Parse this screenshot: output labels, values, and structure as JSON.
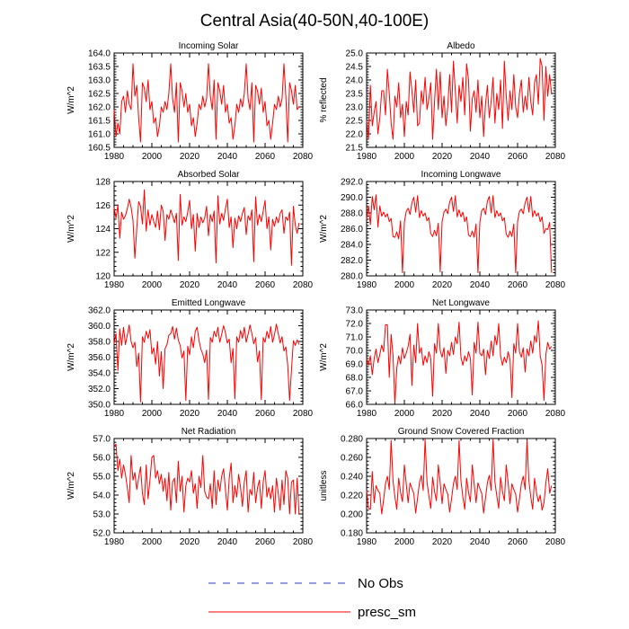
{
  "title": "Central Asia(40-50N,40-100E)",
  "legend": [
    {
      "label": "No Obs",
      "color": "#3333cc",
      "dash": true
    },
    {
      "label": "presc_sm",
      "color": "#ff0000",
      "dash": false
    }
  ],
  "colors": {
    "series": "#ff0000",
    "axis": "#000000"
  },
  "chart_data": [
    {
      "type": "line",
      "title": "Incoming Solar",
      "ylabel": "W/m^2",
      "xlim": [
        1980,
        2080
      ],
      "ylim": [
        160.5,
        164.0
      ],
      "xticks": [
        1980,
        2000,
        2020,
        2040,
        2060,
        2080
      ],
      "yticks": [
        160.5,
        161.0,
        161.5,
        162.0,
        162.5,
        163.0,
        163.5,
        164.0
      ],
      "ytick_labels": [
        "160.5",
        "161.0",
        "161.5",
        "162.0",
        "162.5",
        "163.0",
        "163.5",
        "164.0"
      ],
      "x_start": 1980,
      "values": [
        161.9,
        160.9,
        161.4,
        161.0,
        162.2,
        162.4,
        161.8,
        162.6,
        162.1,
        161.9,
        163.6,
        162.4,
        162.8,
        161.6,
        160.7,
        162.9,
        162.7,
        162.2,
        163.0,
        161.9,
        162.2,
        161.4,
        161.6,
        160.9,
        161.3,
        162.0,
        161.8,
        162.2,
        161.9,
        162.5,
        163.6,
        162.3,
        161.8,
        162.9,
        160.7,
        162.9,
        162.6,
        162.0,
        162.5,
        161.8,
        162.1,
        161.3,
        161.6,
        160.9,
        161.4,
        162.1,
        161.9,
        162.4,
        162.0,
        162.3,
        163.6,
        162.4,
        161.9,
        163.0,
        160.8,
        162.9,
        162.6,
        162.1,
        162.8,
        161.8,
        162.1,
        161.4,
        161.6,
        160.8,
        161.3,
        162.1,
        161.8,
        162.3,
        162.0,
        162.5,
        163.6,
        162.3,
        161.9,
        162.9,
        160.7,
        162.8,
        162.6,
        162.1,
        162.7,
        161.8,
        162.2,
        161.3,
        161.5,
        160.8,
        161.4,
        162.1,
        161.9,
        162.4,
        162.0,
        162.3,
        163.6,
        162.4,
        160.7,
        162.9,
        162.6,
        162.1,
        162.8,
        161.9,
        162.0
      ]
    },
    {
      "type": "line",
      "title": "Albedo",
      "ylabel": "% reflected",
      "xlim": [
        1980,
        2080
      ],
      "ylim": [
        21.5,
        25.0
      ],
      "xticks": [
        1980,
        2000,
        2020,
        2040,
        2060,
        2080
      ],
      "yticks": [
        21.5,
        22.0,
        22.5,
        23.0,
        23.5,
        24.0,
        24.5,
        25.0
      ],
      "ytick_labels": [
        "21.5",
        "22.0",
        "22.5",
        "23.0",
        "23.5",
        "24.0",
        "24.5",
        "25.0"
      ],
      "x_start": 1980,
      "values": [
        22.5,
        21.8,
        23.8,
        22.3,
        22.8,
        23.2,
        22.0,
        22.6,
        23.6,
        23.6,
        22.7,
        24.4,
        23.5,
        22.4,
        21.8,
        23.4,
        23.0,
        23.9,
        22.6,
        23.1,
        21.9,
        23.2,
        22.7,
        24.3,
        23.6,
        22.8,
        24.0,
        22.3,
        22.4,
        23.6,
        23.1,
        24.1,
        22.9,
        23.3,
        23.9,
        21.8,
        23.2,
        24.4,
        22.9,
        24.3,
        22.6,
        23.4,
        22.3,
        23.0,
        24.2,
        22.8,
        24.7,
        23.6,
        22.4,
        23.8,
        23.2,
        24.1,
        22.7,
        24.6,
        24.0,
        22.1,
        23.3,
        23.6,
        22.8,
        24.0,
        22.6,
        23.4,
        21.9,
        23.1,
        23.8,
        22.6,
        23.2,
        24.1,
        22.4,
        23.5,
        22.9,
        24.0,
        22.2,
        24.7,
        23.4,
        22.5,
        23.6,
        22.9,
        24.2,
        23.0,
        22.6,
        23.5,
        24.0,
        22.8,
        23.4,
        22.9,
        24.1,
        23.2,
        22.7,
        23.9,
        24.2,
        23.1,
        24.8,
        24.5,
        22.5,
        24.5,
        23.4,
        24.2,
        23.5
      ]
    },
    {
      "type": "line",
      "title": "Absorbed Solar",
      "ylabel": "W/m^2",
      "xlim": [
        1980,
        2080
      ],
      "ylim": [
        120,
        128
      ],
      "xticks": [
        1980,
        2000,
        2020,
        2040,
        2060,
        2080
      ],
      "yticks": [
        120,
        122,
        124,
        126,
        128
      ],
      "ytick_labels": [
        "120",
        "122",
        "124",
        "126",
        "128"
      ],
      "x_start": 1980,
      "values": [
        125.8,
        124.9,
        126.0,
        123.2,
        125.4,
        124.8,
        125.1,
        125.7,
        126.5,
        125.8,
        124.7,
        121.5,
        124.0,
        126.3,
        125.9,
        124.4,
        127.3,
        123.8,
        125.6,
        124.3,
        125.2,
        124.6,
        124.1,
        125.5,
        123.9,
        126.0,
        125.5,
        123.0,
        125.2,
        124.8,
        125.6,
        125.1,
        124.5,
        125.3,
        121.3,
        126.9,
        124.3,
        125.0,
        124.6,
        125.4,
        126.4,
        124.0,
        125.2,
        122.1,
        125.3,
        124.1,
        125.0,
        124.5,
        124.9,
        125.9,
        123.4,
        125.2,
        124.6,
        125.5,
        121.1,
        126.8,
        124.4,
        125.3,
        124.7,
        125.7,
        126.5,
        124.1,
        125.0,
        122.4,
        124.9,
        124.0,
        125.1,
        124.6,
        125.3,
        125.8,
        123.5,
        125.1,
        124.7,
        125.6,
        121.2,
        126.7,
        124.3,
        125.2,
        124.6,
        125.5,
        126.4,
        124.0,
        125.0,
        122.2,
        124.8,
        124.2,
        125.0,
        124.5,
        125.3,
        125.6,
        123.6,
        125.0,
        124.7,
        125.4,
        120.9,
        125.9,
        124.3,
        123.6,
        124.5
      ]
    },
    {
      "type": "line",
      "title": "Incoming Longwave",
      "ylabel": "W/m^2",
      "xlim": [
        1980,
        2080
      ],
      "ylim": [
        280.0,
        292.0
      ],
      "xticks": [
        1980,
        2000,
        2020,
        2040,
        2060,
        2080
      ],
      "yticks": [
        280.0,
        282.0,
        284.0,
        286.0,
        288.0,
        290.0,
        292.0
      ],
      "ytick_labels": [
        "280.0",
        "282.0",
        "284.0",
        "286.0",
        "288.0",
        "290.0",
        "292.0"
      ],
      "x_start": 1980,
      "values": [
        287.2,
        288.9,
        286.5,
        290.1,
        288.4,
        290.3,
        286.2,
        288.9,
        287.6,
        288.1,
        287.5,
        287.9,
        286.9,
        287.3,
        285.0,
        284.9,
        285.6,
        284.7,
        287.0,
        280.4,
        286.8,
        288.2,
        288.6,
        287.8,
        289.3,
        290.0,
        288.1,
        290.2,
        287.4,
        288.3,
        287.6,
        288.0,
        287.0,
        287.4,
        285.4,
        285.0,
        285.8,
        285.1,
        286.7,
        280.5,
        286.9,
        288.1,
        288.5,
        287.9,
        289.4,
        290.0,
        288.2,
        290.2,
        287.5,
        288.4,
        287.5,
        288.1,
        286.9,
        287.5,
        285.2,
        285.0,
        285.7,
        284.9,
        286.6,
        280.4,
        286.8,
        288.3,
        288.6,
        287.8,
        289.5,
        290.1,
        288.0,
        290.2,
        287.4,
        288.3,
        287.6,
        288.0,
        287.0,
        287.4,
        285.3,
        284.9,
        285.7,
        285.0,
        286.6,
        280.4,
        286.9,
        288.2,
        288.5,
        287.9,
        289.3,
        290.0,
        288.1,
        290.1,
        287.5,
        288.3,
        287.6,
        288.0,
        286.9,
        287.5,
        285.4,
        286.0,
        285.9,
        286.8,
        280.4
      ]
    },
    {
      "type": "line",
      "title": "Emitted Longwave",
      "ylabel": "W/m^2",
      "xlim": [
        1980,
        2080
      ],
      "ylim": [
        350.0,
        362.0
      ],
      "xticks": [
        1980,
        2000,
        2020,
        2040,
        2060,
        2080
      ],
      "yticks": [
        350.0,
        352.0,
        354.0,
        356.0,
        358.0,
        360.0,
        362.0
      ],
      "ytick_labels": [
        "350.0",
        "352.0",
        "354.0",
        "356.0",
        "358.0",
        "360.0",
        "362.0"
      ],
      "x_start": 1980,
      "values": [
        357.7,
        359.0,
        354.3,
        359.6,
        357.5,
        359.8,
        357.6,
        358.8,
        360.1,
        358.0,
        357.2,
        357.9,
        354.8,
        356.5,
        350.3,
        358.6,
        357.9,
        359.3,
        358.4,
        359.5,
        356.4,
        357.2,
        355.1,
        358.0,
        353.6,
        356.7,
        352.0,
        357.1,
        357.6,
        358.8,
        359.0,
        359.9,
        358.3,
        359.7,
        358.2,
        357.5,
        355.9,
        356.8,
        350.5,
        357.4,
        356.3,
        358.6,
        357.2,
        359.3,
        359.8,
        358.1,
        357.0,
        356.4,
        355.3,
        356.9,
        350.6,
        358.5,
        357.9,
        359.3,
        358.6,
        359.8,
        357.9,
        358.9,
        360.0,
        359.1,
        357.8,
        358.3,
        355.3,
        357.1,
        350.7,
        358.6,
        357.9,
        359.4,
        358.4,
        359.8,
        357.9,
        358.9,
        360.1,
        359.0,
        357.7,
        358.5,
        355.4,
        356.8,
        350.6,
        358.5,
        357.9,
        359.3,
        358.4,
        359.9,
        357.9,
        358.9,
        360.2,
        359.0,
        357.8,
        358.6,
        356.8,
        357.3,
        355.0,
        350.5,
        354.4,
        358.1,
        357.5,
        358.2,
        357.6
      ]
    },
    {
      "type": "line",
      "title": "Net Longwave",
      "ylabel": "W/m^2",
      "xlim": [
        1980,
        2080
      ],
      "ylim": [
        66.0,
        73.0
      ],
      "xticks": [
        1980,
        2000,
        2020,
        2040,
        2060,
        2080
      ],
      "yticks": [
        66.0,
        67.0,
        68.0,
        69.0,
        70.0,
        71.0,
        72.0,
        73.0
      ],
      "ytick_labels": [
        "66.0",
        "67.0",
        "68.0",
        "69.0",
        "70.0",
        "71.0",
        "72.0",
        "73.0"
      ],
      "x_start": 1980,
      "values": [
        69.4,
        68.9,
        69.6,
        68.2,
        69.4,
        70.1,
        69.1,
        69.7,
        70.4,
        69.9,
        71.9,
        71.9,
        68.0,
        71.2,
        69.6,
        66.1,
        68.7,
        69.6,
        69.0,
        70.2,
        69.4,
        69.8,
        70.3,
        71.2,
        67.4,
        70.4,
        69.1,
        72.0,
        69.8,
        70.2,
        68.9,
        69.6,
        69.1,
        69.9,
        69.4,
        66.6,
        70.5,
        69.8,
        72.0,
        70.0,
        69.5,
        70.2,
        68.3,
        70.0,
        69.6,
        70.6,
        69.7,
        71.0,
        70.5,
        72.1,
        69.5,
        68.9,
        69.6,
        69.2,
        69.9,
        69.4,
        66.7,
        70.6,
        69.8,
        72.1,
        69.8,
        69.6,
        70.1,
        68.2,
        70.0,
        69.4,
        70.7,
        69.6,
        71.1,
        70.4,
        72.0,
        69.6,
        68.9,
        69.5,
        69.1,
        69.9,
        69.3,
        66.5,
        70.5,
        69.8,
        72.0,
        69.9,
        69.5,
        70.2,
        68.4,
        70.1,
        69.6,
        70.7,
        69.8,
        71.1,
        70.6,
        72.2,
        69.6,
        68.9,
        66.3,
        69.7,
        70.6,
        70.1,
        70.3
      ]
    },
    {
      "type": "line",
      "title": "Net Radiation",
      "ylabel": "W/m^2",
      "xlim": [
        1980,
        2080
      ],
      "ylim": [
        52.0,
        57.0
      ],
      "xticks": [
        1980,
        2000,
        2020,
        2040,
        2060,
        2080
      ],
      "yticks": [
        52.0,
        53.0,
        54.0,
        55.0,
        56.0,
        57.0
      ],
      "ytick_labels": [
        "52.0",
        "53.0",
        "54.0",
        "55.0",
        "56.0",
        "57.0"
      ],
      "x_start": 1980,
      "values": [
        56.6,
        56.7,
        55.3,
        55.9,
        54.9,
        55.6,
        55.1,
        54.4,
        53.6,
        56.1,
        54.8,
        55.2,
        54.3,
        54.9,
        55.5,
        54.1,
        53.5,
        55.6,
        53.8,
        54.8,
        56.0,
        56.1,
        54.9,
        55.3,
        54.6,
        55.1,
        54.2,
        54.9,
        53.7,
        55.2,
        53.2,
        54.7,
        54.9,
        53.6,
        55.8,
        54.2,
        55.0,
        53.1,
        54.5,
        54.9,
        54.7,
        55.3,
        54.1,
        54.6,
        53.3,
        55.0,
        54.4,
        56.1,
        54.2,
        53.9,
        53.8,
        54.6,
        53.3,
        55.3,
        53.5,
        54.8,
        54.2,
        55.0,
        55.4,
        54.3,
        53.2,
        54.9,
        55.7,
        53.6,
        54.5,
        53.9,
        55.1,
        54.4,
        53.4,
        54.7,
        55.3,
        53.1,
        54.3,
        54.0,
        55.2,
        53.6,
        54.4,
        54.8,
        53.3,
        54.7,
        55.3,
        53.9,
        54.4,
        53.8,
        54.5,
        53.1,
        54.9,
        54.1,
        53.2,
        54.8,
        53.5,
        55.3,
        54.9,
        53.0,
        54.7,
        54.8,
        53.0,
        54.9,
        53.0
      ]
    },
    {
      "type": "line",
      "title": "Ground Snow Covered Fraction",
      "ylabel": "unitless",
      "xlim": [
        1980,
        2080
      ],
      "ylim": [
        0.18,
        0.28
      ],
      "xticks": [
        1980,
        2000,
        2020,
        2040,
        2060,
        2080
      ],
      "yticks": [
        0.18,
        0.2,
        0.22,
        0.24,
        0.26,
        0.28
      ],
      "ytick_labels": [
        "0.180",
        "0.200",
        "0.220",
        "0.240",
        "0.260",
        "0.280"
      ],
      "x_start": 1980,
      "values": [
        0.225,
        0.206,
        0.205,
        0.245,
        0.212,
        0.23,
        0.225,
        0.222,
        0.2,
        0.215,
        0.232,
        0.24,
        0.226,
        0.278,
        0.235,
        0.218,
        0.205,
        0.238,
        0.223,
        0.213,
        0.252,
        0.232,
        0.212,
        0.233,
        0.227,
        0.222,
        0.201,
        0.217,
        0.233,
        0.241,
        0.225,
        0.279,
        0.234,
        0.219,
        0.206,
        0.239,
        0.224,
        0.214,
        0.252,
        0.233,
        0.211,
        0.232,
        0.226,
        0.221,
        0.202,
        0.216,
        0.232,
        0.24,
        0.226,
        0.278,
        0.235,
        0.218,
        0.205,
        0.238,
        0.223,
        0.213,
        0.252,
        0.232,
        0.212,
        0.233,
        0.227,
        0.222,
        0.201,
        0.217,
        0.233,
        0.241,
        0.225,
        0.279,
        0.234,
        0.219,
        0.206,
        0.239,
        0.224,
        0.214,
        0.252,
        0.233,
        0.211,
        0.232,
        0.226,
        0.221,
        0.202,
        0.216,
        0.232,
        0.24,
        0.226,
        0.278,
        0.235,
        0.218,
        0.205,
        0.238,
        0.223,
        0.213,
        0.22,
        0.204,
        0.212,
        0.233,
        0.248,
        0.222,
        0.23
      ]
    }
  ]
}
